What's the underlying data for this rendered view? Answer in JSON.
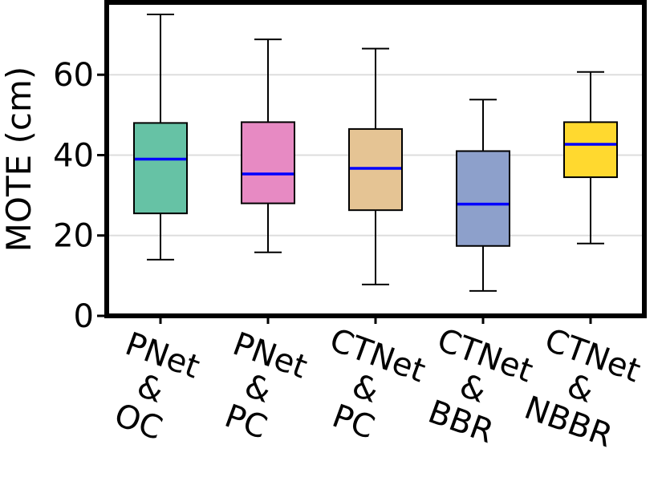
{
  "chart_data": {
    "type": "box",
    "title": "",
    "xlabel": "",
    "ylabel": "MOTE (cm)",
    "ylim": [
      0,
      78
    ],
    "yticks": [
      0,
      20,
      40,
      60
    ],
    "grid": "horizontal",
    "legend": "none",
    "categories": [
      {
        "label": [
          "PNet",
          "&",
          "OC"
        ],
        "min": 14,
        "q1": 25.5,
        "median": 39,
        "q3": 48,
        "max": 75,
        "color": "#66c2a5"
      },
      {
        "label": [
          "PNet",
          "&",
          "PC"
        ],
        "min": 15.8,
        "q1": 28,
        "median": 35.3,
        "q3": 48.2,
        "max": 68.8,
        "color": "#e78ac3"
      },
      {
        "label": [
          "CTNet",
          "&",
          "PC"
        ],
        "min": 7.8,
        "q1": 26.3,
        "median": 36.7,
        "q3": 46.5,
        "max": 66.5,
        "color": "#e5c494"
      },
      {
        "label": [
          "CTNet",
          "&",
          "BBR"
        ],
        "min": 6.2,
        "q1": 17.4,
        "median": 27.8,
        "q3": 41,
        "max": 53.8,
        "color": "#8da0cb"
      },
      {
        "label": [
          "CTNet",
          "&",
          "NBBR"
        ],
        "min": 18,
        "q1": 34.5,
        "median": 42.7,
        "q3": 48.2,
        "max": 60.7,
        "color": "#ffd92f"
      }
    ],
    "median_color": "#0000ff"
  }
}
